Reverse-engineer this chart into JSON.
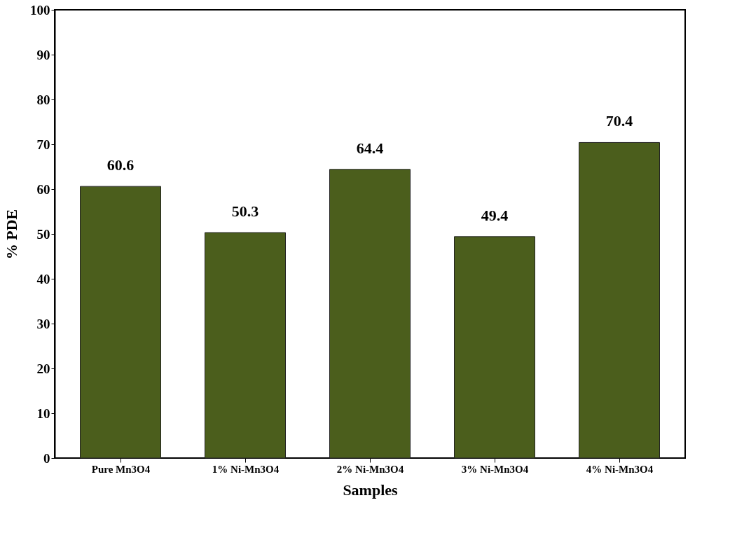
{
  "chart_data": {
    "type": "bar",
    "xlabel": "Samples",
    "ylabel": "% PDE",
    "categories": [
      "Pure Mn3O4",
      "1% Ni-Mn3O4",
      "2% Ni-Mn3O4",
      "3% Ni-Mn3O4",
      "4% Ni-Mn3O4"
    ],
    "values": [
      60.6,
      50.3,
      64.4,
      49.4,
      70.4
    ],
    "color": "#4b5e1c",
    "ylim": [
      0,
      100
    ],
    "yticks": [
      0,
      10,
      20,
      30,
      40,
      50,
      60,
      70,
      80,
      90,
      100
    ],
    "data_labels": true,
    "grid": false
  }
}
